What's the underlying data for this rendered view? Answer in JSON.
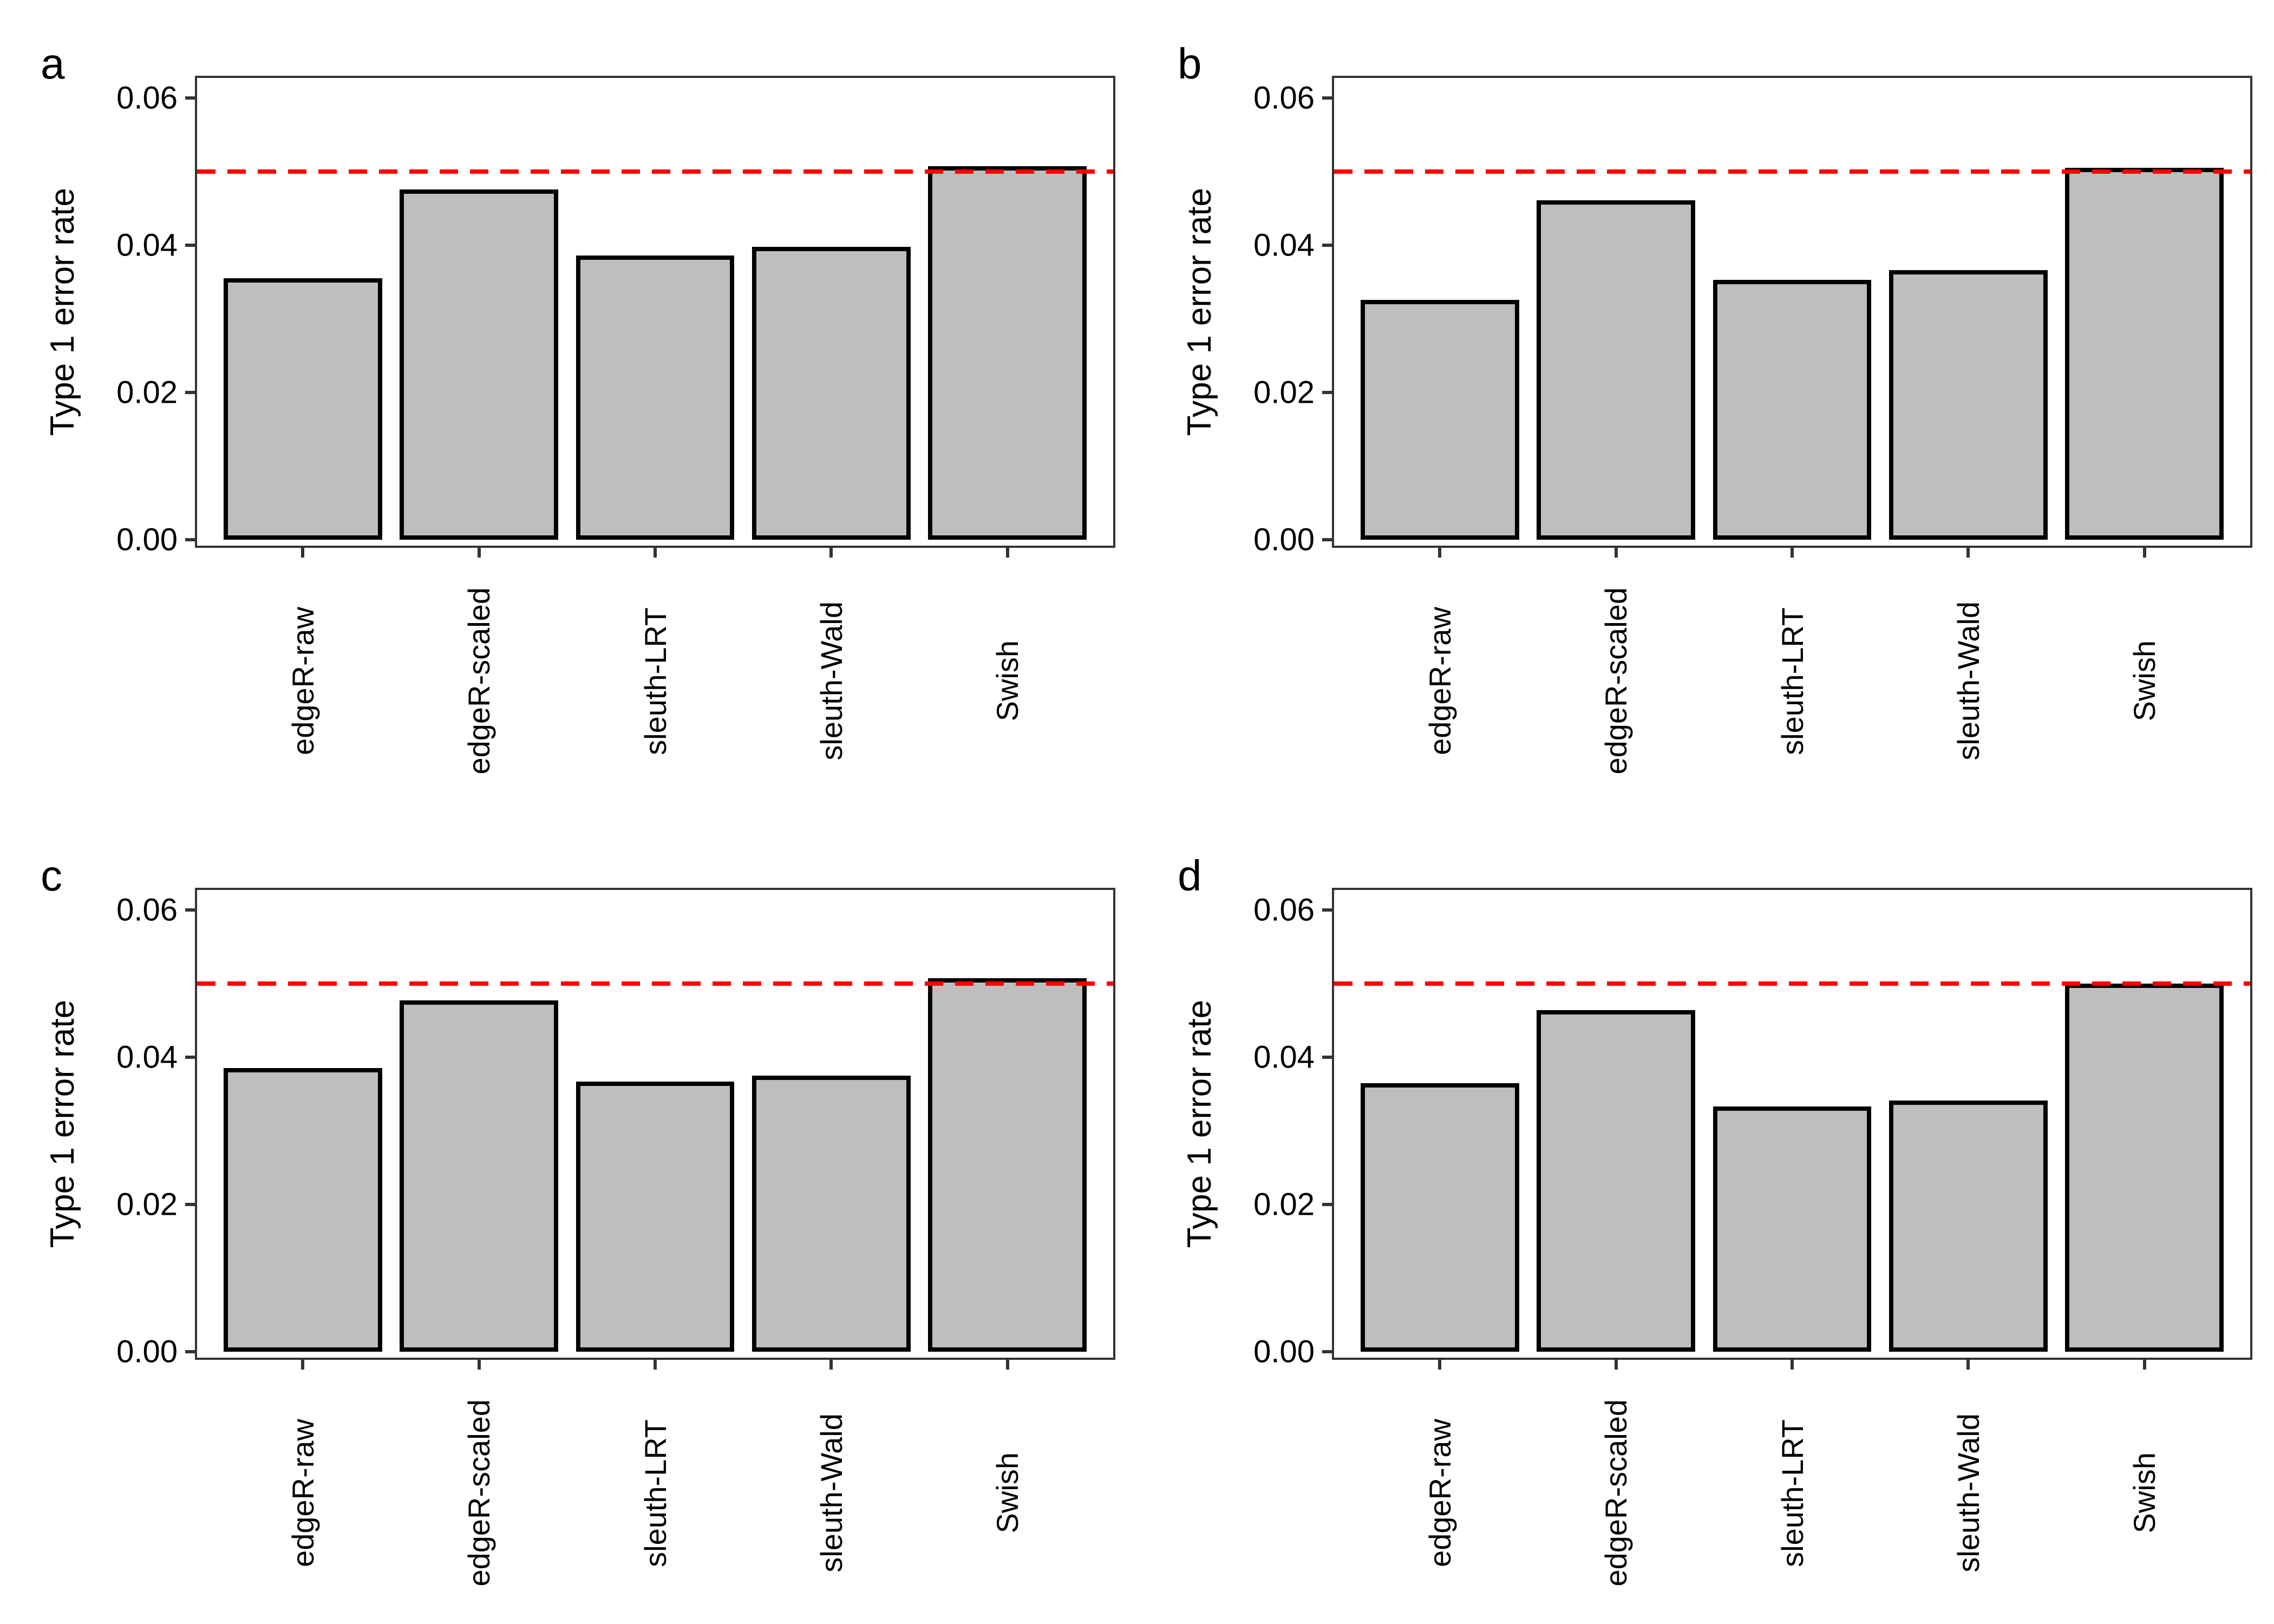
{
  "figure": {
    "background": "#ffffff",
    "panel_border_color": "#333333",
    "tick_color": "#333333",
    "text_color": "#000000"
  },
  "chart_data": [
    {
      "type": "bar",
      "panel_label": "a",
      "categories": [
        "edgeR-raw",
        "edgeR-scaled",
        "sleuth-LRT",
        "sleuth-Wald",
        "Swish"
      ],
      "values": [
        0.0355,
        0.0476,
        0.0386,
        0.0398,
        0.0507
      ],
      "title": "",
      "xlabel": "",
      "ylabel": "Type 1 error rate",
      "ylim": [
        0,
        0.0635
      ],
      "yticks": [
        0,
        0.02,
        0.04,
        0.06
      ],
      "ytick_labels": [
        "0.00",
        "0.02",
        "0.04",
        "0.06"
      ],
      "ref_line": {
        "value": 0.05,
        "color": "#ff0000",
        "style": "dashed"
      },
      "bar_fill": "#bebebe",
      "bar_stroke": "#000000",
      "grid": "off",
      "legend": "none"
    },
    {
      "type": "bar",
      "panel_label": "b",
      "categories": [
        "edgeR-raw",
        "edgeR-scaled",
        "sleuth-LRT",
        "sleuth-Wald",
        "Swish"
      ],
      "values": [
        0.0326,
        0.0461,
        0.0353,
        0.0366,
        0.0505
      ],
      "title": "",
      "xlabel": "",
      "ylabel": "Type 1 error rate",
      "ylim": [
        0,
        0.0635
      ],
      "yticks": [
        0,
        0.02,
        0.04,
        0.06
      ],
      "ytick_labels": [
        "0.00",
        "0.02",
        "0.04",
        "0.06"
      ],
      "ref_line": {
        "value": 0.05,
        "color": "#ff0000",
        "style": "dashed"
      },
      "bar_fill": "#bebebe",
      "bar_stroke": "#000000",
      "grid": "off",
      "legend": "none"
    },
    {
      "type": "bar",
      "panel_label": "c",
      "categories": [
        "edgeR-raw",
        "edgeR-scaled",
        "sleuth-LRT",
        "sleuth-Wald",
        "Swish"
      ],
      "values": [
        0.0385,
        0.0477,
        0.0367,
        0.0375,
        0.0507
      ],
      "title": "",
      "xlabel": "",
      "ylabel": "Type 1 error rate",
      "ylim": [
        0,
        0.0635
      ],
      "yticks": [
        0,
        0.02,
        0.04,
        0.06
      ],
      "ytick_labels": [
        "0.00",
        "0.02",
        "0.04",
        "0.06"
      ],
      "ref_line": {
        "value": 0.05,
        "color": "#ff0000",
        "style": "dashed"
      },
      "bar_fill": "#bebebe",
      "bar_stroke": "#000000",
      "grid": "off",
      "legend": "none"
    },
    {
      "type": "bar",
      "panel_label": "d",
      "categories": [
        "edgeR-raw",
        "edgeR-scaled",
        "sleuth-LRT",
        "sleuth-Wald",
        "Swish"
      ],
      "values": [
        0.0365,
        0.0464,
        0.0333,
        0.0341,
        0.05
      ],
      "title": "",
      "xlabel": "",
      "ylabel": "Type 1 error rate",
      "ylim": [
        0,
        0.0635
      ],
      "yticks": [
        0,
        0.02,
        0.04,
        0.06
      ],
      "ytick_labels": [
        "0.00",
        "0.02",
        "0.04",
        "0.06"
      ],
      "ref_line": {
        "value": 0.05,
        "color": "#ff0000",
        "style": "dashed"
      },
      "bar_fill": "#bebebe",
      "bar_stroke": "#000000",
      "grid": "off",
      "legend": "none"
    }
  ]
}
